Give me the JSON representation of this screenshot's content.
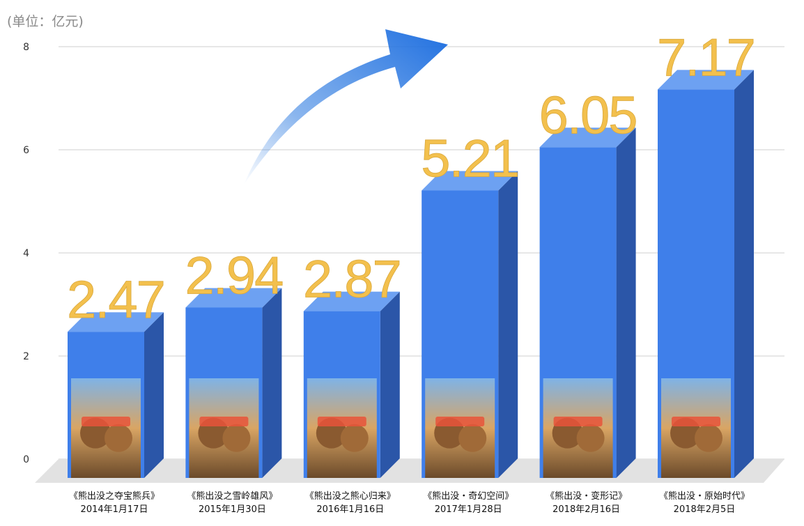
{
  "unit_label": "(单位：亿元)",
  "chart_data": {
    "type": "bar",
    "title": "",
    "xlabel": "",
    "ylabel": "",
    "unit": "(单位：亿元)",
    "ylim": [
      0,
      8
    ],
    "yticks": [
      "0",
      "2",
      "4",
      "6",
      "8"
    ],
    "grid": true,
    "categories": [
      {
        "name": "《熊出没之夺宝熊兵》",
        "date": "2014年1月17日"
      },
      {
        "name": "《熊出没之雪岭雄风》",
        "date": "2015年1月30日"
      },
      {
        "name": "《熊出没之熊心归来》",
        "date": "2016年1月16日"
      },
      {
        "name": "《熊出没・奇幻空间》",
        "date": "2017年1月28日"
      },
      {
        "name": "《熊出没・变形记》",
        "date": "2018年2月16日"
      },
      {
        "name": "《熊出没・原始时代》",
        "date": "2018年2月5日"
      }
    ],
    "values": [
      2.47,
      2.94,
      2.87,
      5.21,
      6.05,
      7.17
    ],
    "value_labels": [
      "2.47",
      "2.94",
      "2.87",
      "5.21",
      "6.05",
      "7.17"
    ],
    "bar_color": "#3f7fea",
    "value_label_color": "#f3c04d",
    "trend_arrow_color": "#2a79e0"
  }
}
